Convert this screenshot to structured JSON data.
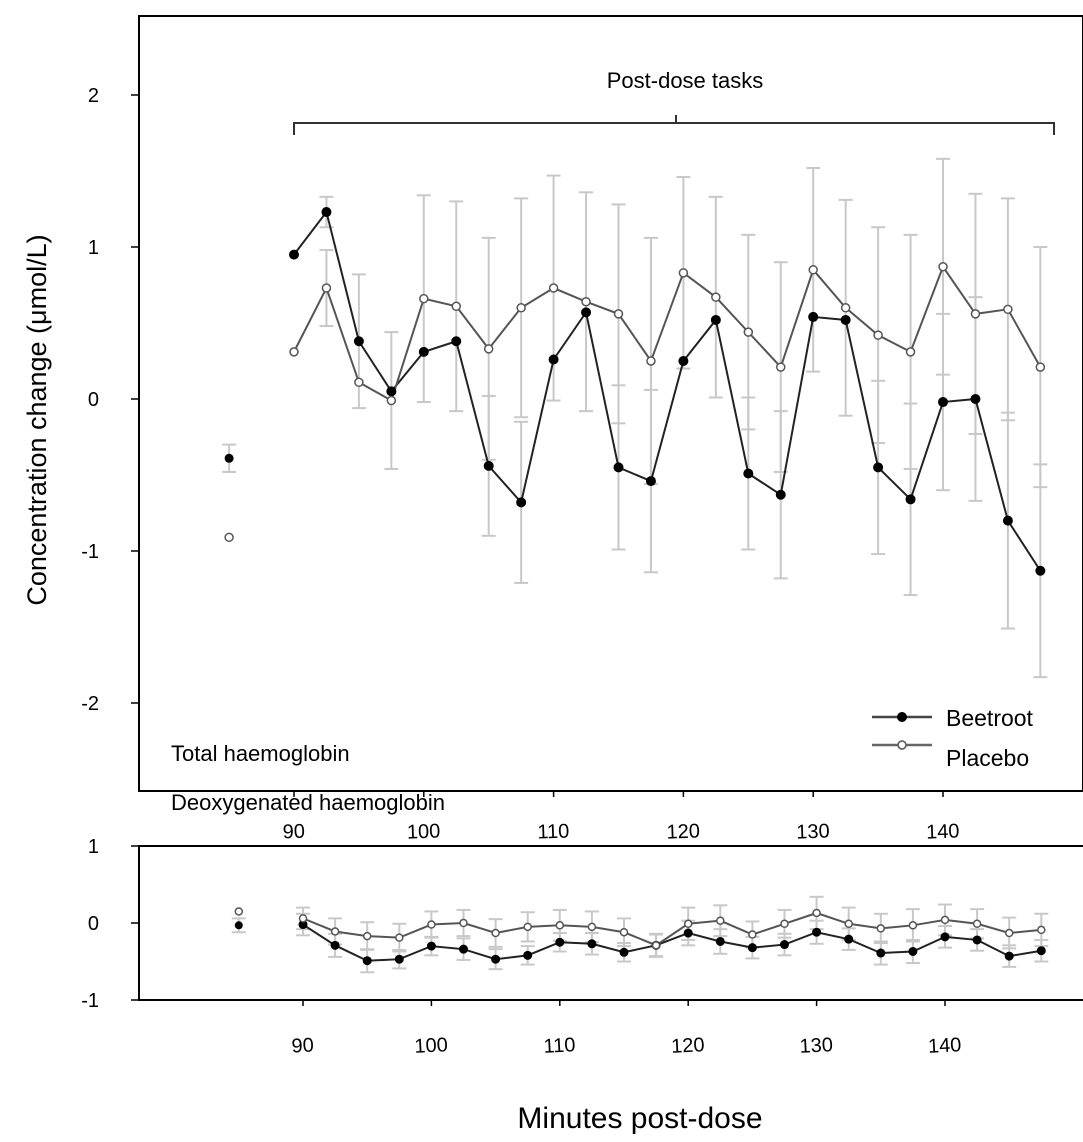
{
  "figure": {
    "y_axis_label": "Concentration change (μmol/L)",
    "x_axis_label": "Minutes post-dose",
    "bracket_label": "Post-dose tasks"
  },
  "legend": [
    {
      "label": "Beetroot",
      "marker": "filled"
    },
    {
      "label": "Placebo",
      "marker": "open"
    }
  ],
  "colors": {
    "beetroot": "#000000",
    "placebo": "#6e6e6e",
    "line": "#333333",
    "error_bar": "#c8c8c8",
    "axis": "#000000"
  },
  "chart_data": [
    {
      "type": "line",
      "panel_label": "Total haemoglobin",
      "ylim": [
        -2.4,
        2.55
      ],
      "xlim": [
        80,
        150
      ],
      "yticks": [
        -2,
        -1,
        0,
        1,
        2
      ],
      "xticks": [
        90,
        100,
        110,
        120,
        130,
        140
      ],
      "grid": false,
      "legend_position": "bottom-right",
      "baseline": {
        "x": 85,
        "beetroot": {
          "y": -0.39,
          "err": 0.09
        },
        "placebo": {
          "y": -0.91,
          "err": 0.0
        }
      },
      "series": [
        {
          "name": "Beetroot",
          "marker": "filled",
          "x": [
            90,
            92.5,
            95,
            97.5,
            100,
            102.5,
            105,
            107.5,
            110,
            112.5,
            115,
            117.5,
            120,
            122.5,
            125,
            127.5,
            130,
            132.5,
            135,
            137.5,
            140,
            142.5,
            145,
            147.5
          ],
          "y": [
            0.95,
            1.23,
            0.38,
            0.05,
            0.31,
            0.38,
            -0.44,
            -0.68,
            0.26,
            0.57,
            -0.45,
            -0.54,
            0.25,
            0.52,
            -0.49,
            -0.63,
            0.54,
            0.52,
            -0.45,
            -0.66,
            -0.02,
            0.0,
            -0.8,
            -1.13
          ],
          "err": [
            0.0,
            0.1,
            0.44,
            0.0,
            0.0,
            0.0,
            0.46,
            0.53,
            0.0,
            0.0,
            0.54,
            0.6,
            0.0,
            0.0,
            0.5,
            0.55,
            0.0,
            0.0,
            0.57,
            0.63,
            0.58,
            0.67,
            0.71,
            0.7
          ]
        },
        {
          "name": "Placebo",
          "marker": "open",
          "x": [
            90,
            92.5,
            95,
            97.5,
            100,
            102.5,
            105,
            107.5,
            110,
            112.5,
            115,
            117.5,
            120,
            122.5,
            125,
            127.5,
            130,
            132.5,
            135,
            137.5,
            140,
            142.5,
            145,
            147.5
          ],
          "y": [
            0.31,
            0.73,
            0.11,
            -0.01,
            0.66,
            0.61,
            0.33,
            0.6,
            0.73,
            0.64,
            0.56,
            0.25,
            0.83,
            0.67,
            0.44,
            0.21,
            0.85,
            0.6,
            0.42,
            0.31,
            0.87,
            0.56,
            0.59,
            0.21
          ],
          "err": [
            0.0,
            0.25,
            0.0,
            0.45,
            0.68,
            0.69,
            0.73,
            0.72,
            0.74,
            0.72,
            0.72,
            0.81,
            0.63,
            0.66,
            0.64,
            0.69,
            0.67,
            0.71,
            0.71,
            0.77,
            0.71,
            0.79,
            0.73,
            0.79
          ]
        }
      ]
    },
    {
      "type": "line",
      "panel_label": "Deoxygenated haemoglobin",
      "ylim": [
        -1,
        1
      ],
      "xlim": [
        80,
        150
      ],
      "yticks": [
        -1,
        0,
        1
      ],
      "xticks": [
        90,
        100,
        110,
        120,
        130,
        140
      ],
      "grid": false,
      "baseline": {
        "x": 85,
        "beetroot": {
          "y": -0.03,
          "err": 0.09
        },
        "placebo": {
          "y": 0.15,
          "err": 0.0
        }
      },
      "series": [
        {
          "name": "Beetroot",
          "marker": "filled",
          "x": [
            90,
            92.5,
            95,
            97.5,
            100,
            102.5,
            105,
            107.5,
            110,
            112.5,
            115,
            117.5,
            120,
            122.5,
            125,
            127.5,
            130,
            132.5,
            135,
            137.5,
            140,
            142.5,
            145,
            147.5
          ],
          "y": [
            -0.02,
            -0.29,
            -0.49,
            -0.47,
            -0.3,
            -0.34,
            -0.47,
            -0.42,
            -0.25,
            -0.27,
            -0.38,
            -0.29,
            -0.13,
            -0.24,
            -0.32,
            -0.28,
            -0.12,
            -0.21,
            -0.39,
            -0.37,
            -0.18,
            -0.22,
            -0.43,
            -0.36
          ],
          "err": [
            0.14,
            0.15,
            0.15,
            0.12,
            0.12,
            0.14,
            0.13,
            0.12,
            0.12,
            0.14,
            0.12,
            0.14,
            0.16,
            0.16,
            0.14,
            0.14,
            0.15,
            0.14,
            0.15,
            0.15,
            0.14,
            0.14,
            0.14,
            0.14
          ]
        },
        {
          "name": "Placebo",
          "marker": "open",
          "x": [
            90,
            92.5,
            95,
            97.5,
            100,
            102.5,
            105,
            107.5,
            110,
            112.5,
            115,
            117.5,
            120,
            122.5,
            125,
            127.5,
            130,
            132.5,
            135,
            137.5,
            140,
            142.5,
            145,
            147.5
          ],
          "y": [
            0.06,
            -0.11,
            -0.17,
            -0.19,
            -0.02,
            0.0,
            -0.13,
            -0.05,
            -0.03,
            -0.05,
            -0.12,
            -0.29,
            -0.01,
            0.03,
            -0.15,
            -0.01,
            0.13,
            -0.01,
            -0.07,
            -0.03,
            0.04,
            -0.01,
            -0.13,
            -0.09
          ],
          "err": [
            0.14,
            0.17,
            0.18,
            0.18,
            0.17,
            0.17,
            0.18,
            0.19,
            0.2,
            0.2,
            0.18,
            0.15,
            0.21,
            0.2,
            0.17,
            0.18,
            0.21,
            0.21,
            0.19,
            0.21,
            0.2,
            0.19,
            0.2,
            0.21
          ]
        }
      ]
    }
  ]
}
